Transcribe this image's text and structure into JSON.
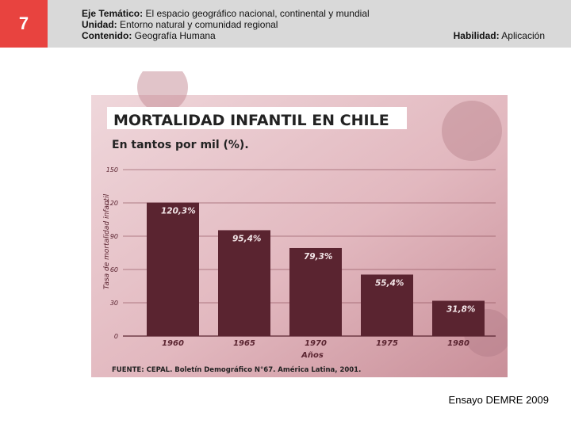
{
  "header": {
    "number": "7",
    "eje_label": "Eje Temático:",
    "eje_value": "El espacio geográfico nacional, continental y mundial",
    "unidad_label": "Unidad:",
    "unidad_value": "Entorno natural y comunidad regional",
    "contenido_label": "Contenido:",
    "contenido_value": "Geografía Humana",
    "habilidad_label": "Habilidad:",
    "habilidad_value": "Aplicación"
  },
  "colors": {
    "accent_red": "#e8433f",
    "header_gray": "#d9d9d9",
    "bar": "#5a2430",
    "chart_bg": "#e3bcc3"
  },
  "chart_data": {
    "type": "bar",
    "title": "MORTALIDAD INFANTIL EN CHILE",
    "subtitle": "En tantos por mil (%).",
    "categories": [
      "1960",
      "1965",
      "1970",
      "1975",
      "1980"
    ],
    "values": [
      120.3,
      95.4,
      79.3,
      55.4,
      31.8
    ],
    "data_labels": [
      "120,3%",
      "95,4%",
      "79,3%",
      "55,4%",
      "31,8%"
    ],
    "yticks": [
      "150",
      "120",
      "90",
      "60",
      "30",
      "0"
    ],
    "ytick_values": [
      150,
      120,
      90,
      60,
      30,
      0
    ],
    "ylim": [
      0,
      150
    ],
    "xlabel": "Años",
    "ylabel": "Tasa de mortalidad infantil",
    "source": "FUENTE: CEPAL. Boletín Demográfico N°67. América Latina, 2001."
  },
  "footer": {
    "text": "Ensayo DEMRE 2009"
  }
}
